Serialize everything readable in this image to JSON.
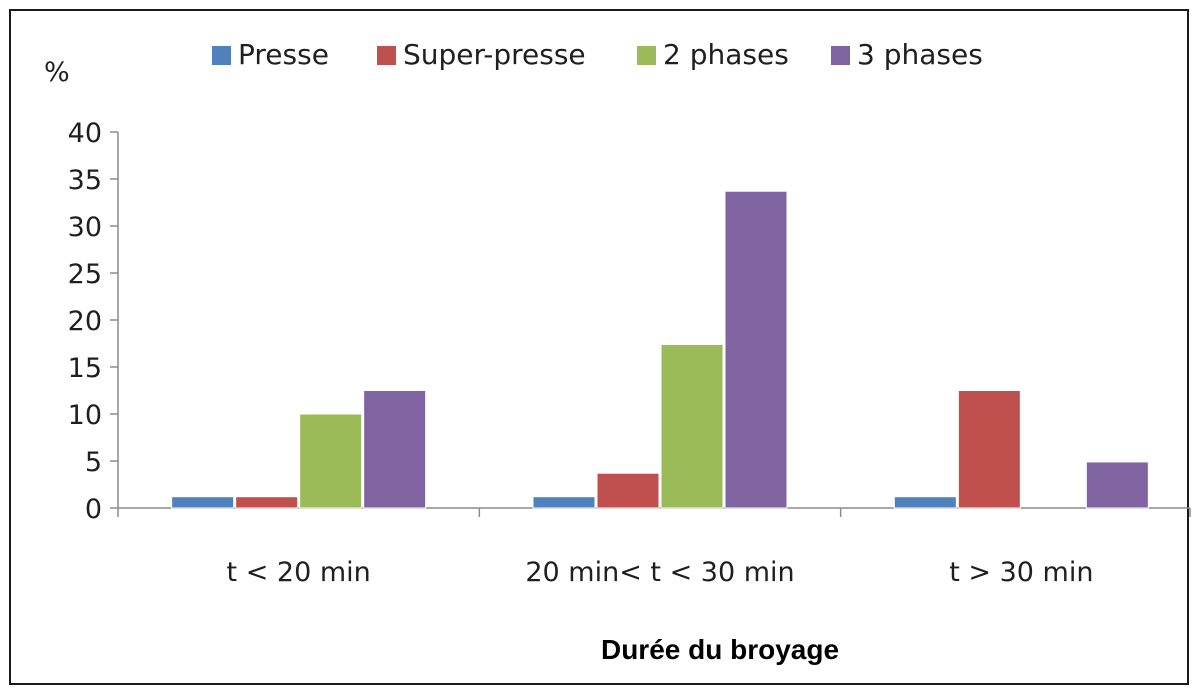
{
  "chart_data": {
    "type": "bar",
    "title": "",
    "ylabel": "%",
    "xlabel": "Durée du broyage",
    "ylim": [
      0,
      40
    ],
    "yticks": [
      0,
      5,
      10,
      15,
      20,
      25,
      30,
      35,
      40
    ],
    "grid": false,
    "legend_position": "top",
    "categories": [
      "t < 20 min",
      "20 min< t < 30 min",
      "t > 30 min"
    ],
    "series": [
      {
        "name": "Presse",
        "color": "#4f81bd",
        "values": [
          1.2,
          1.2,
          1.2
        ]
      },
      {
        "name": "Super-presse",
        "color": "#c0504d",
        "values": [
          1.2,
          3.7,
          12.5
        ]
      },
      {
        "name": "2 phases",
        "color": "#9bbb59",
        "values": [
          10,
          17.4,
          0
        ]
      },
      {
        "name": "3 phases",
        "color": "#8064a2",
        "values": [
          12.5,
          33.7,
          4.9
        ]
      }
    ]
  }
}
